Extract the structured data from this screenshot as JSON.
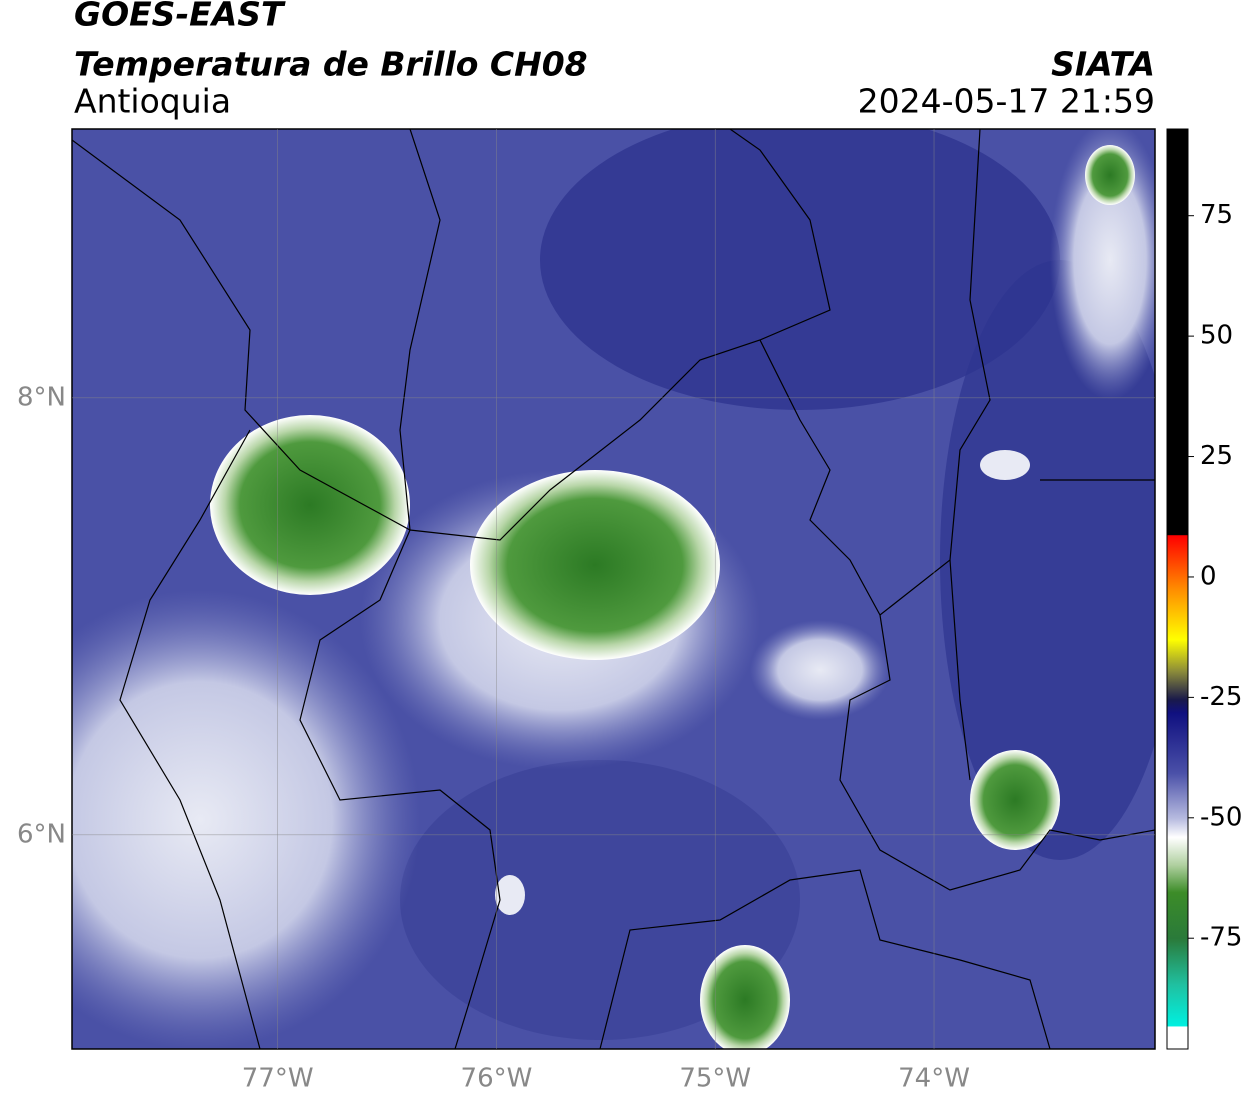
{
  "header": {
    "title": "GOES-EAST",
    "product": "Temperatura de Brillo CH08",
    "region": "Antioquia",
    "source": "SIATA",
    "timestamp": "2024-05-17 21:59"
  },
  "map": {
    "xlim": [
      -77.94,
      -72.99
    ],
    "ylim": [
      5.02,
      9.23
    ],
    "xticks": [
      {
        "value": -77,
        "label": "77°W"
      },
      {
        "value": -76,
        "label": "76°W"
      },
      {
        "value": -75,
        "label": "75°W"
      },
      {
        "value": -74,
        "label": "74°W"
      }
    ],
    "yticks": [
      {
        "value": 8,
        "label": "8°N"
      },
      {
        "value": 6,
        "label": "6°N"
      }
    ],
    "grid": true
  },
  "colorbar": {
    "lim": [
      -98,
      93
    ],
    "ticks": [
      75,
      50,
      25,
      0,
      -25,
      -50,
      -75
    ]
  }
}
